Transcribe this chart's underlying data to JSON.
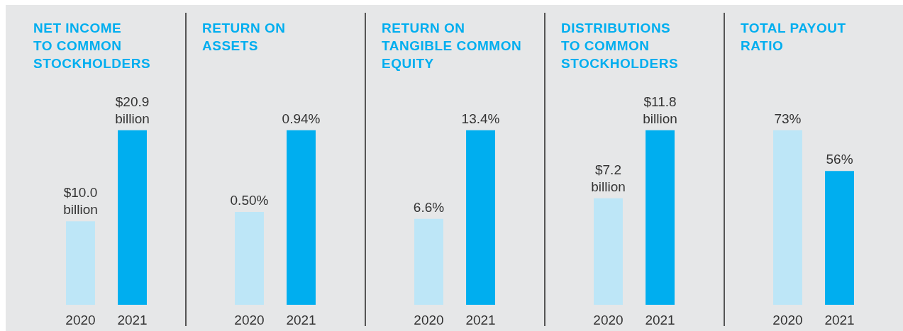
{
  "chart_data": [
    {
      "type": "bar",
      "title": "NET INCOME\nTO COMMON\nSTOCKHOLDERS",
      "categories": [
        "2020",
        "2021"
      ],
      "values": [
        10.0,
        20.9
      ],
      "colors": [
        "#bde6f7",
        "#00aeef"
      ],
      "value_labels": [
        "$10.0 billion",
        "$20.9 billion"
      ]
    },
    {
      "type": "bar",
      "title": "RETURN ON\nASSETS",
      "categories": [
        "2020",
        "2021"
      ],
      "values": [
        0.5,
        0.94
      ],
      "colors": [
        "#bde6f7",
        "#00aeef"
      ],
      "value_labels": [
        "0.50%",
        "0.94%"
      ]
    },
    {
      "type": "bar",
      "title": "RETURN ON\nTANGIBLE COMMON\nEQUITY",
      "categories": [
        "2020",
        "2021"
      ],
      "values": [
        6.6,
        13.4
      ],
      "colors": [
        "#bde6f7",
        "#00aeef"
      ],
      "value_labels": [
        "6.6%",
        "13.4%"
      ]
    },
    {
      "type": "bar",
      "title": "DISTRIBUTIONS\nTO COMMON\nSTOCKHOLDERS",
      "categories": [
        "2020",
        "2021"
      ],
      "values": [
        7.2,
        11.8
      ],
      "colors": [
        "#bde6f7",
        "#00aeef"
      ],
      "value_labels": [
        "$7.2 billion",
        "$11.8 billion"
      ]
    },
    {
      "type": "bar",
      "title": "TOTAL PAYOUT\nRATIO",
      "categories": [
        "2020",
        "2021"
      ],
      "values": [
        73,
        56
      ],
      "colors": [
        "#bde6f7",
        "#00aeef"
      ],
      "value_labels": [
        "73%",
        "56%"
      ]
    }
  ]
}
